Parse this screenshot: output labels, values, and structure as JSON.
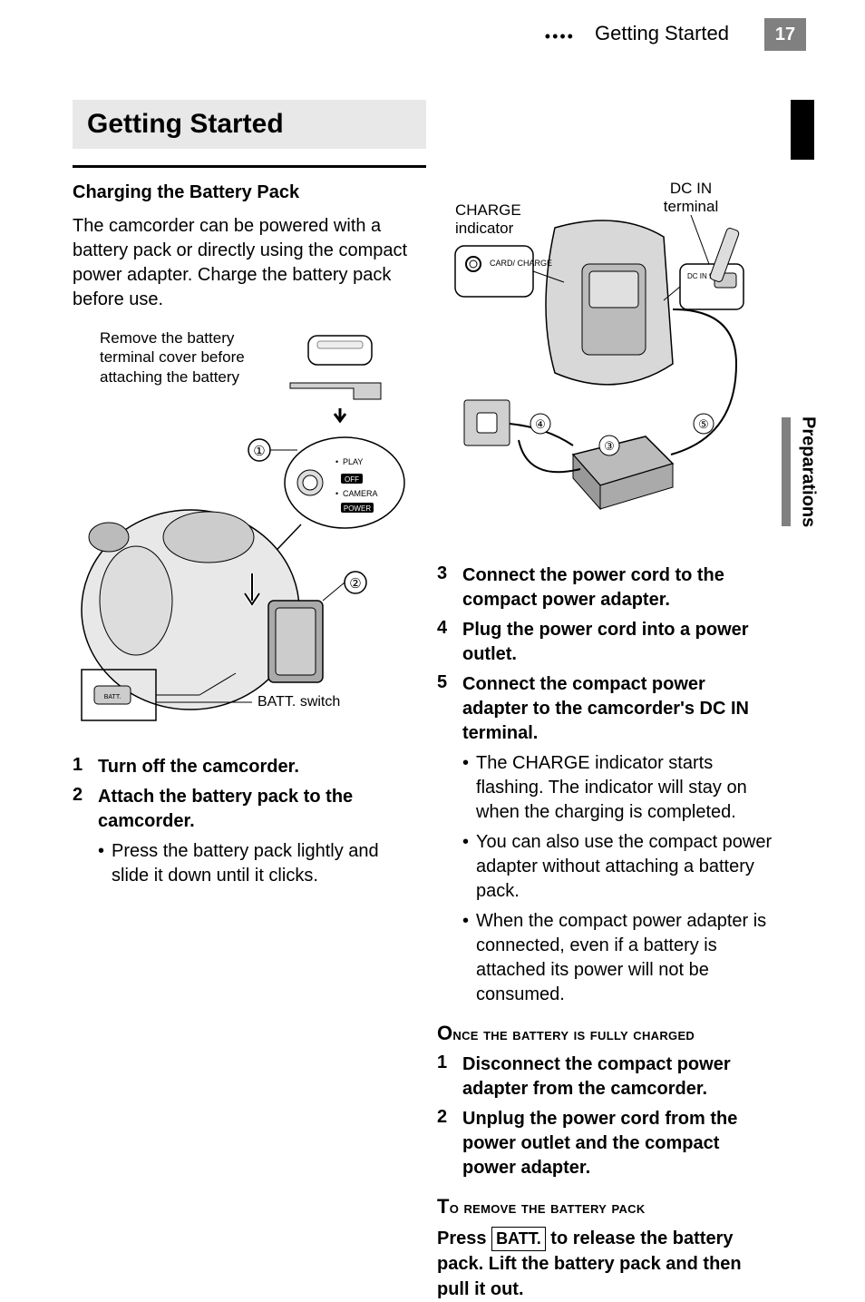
{
  "header": {
    "dots": "••••",
    "title": "Getting Started",
    "page_number": "17"
  },
  "side_tab": "Preparations",
  "section_title": "Getting Started",
  "sub_heading": "Charging the Battery Pack",
  "intro": "The camcorder can be powered with a battery pack or directly using the compact power adapter. Charge the battery pack before use.",
  "fig1": {
    "note": "Remove the battery terminal cover before attaching the battery",
    "callout1": "①",
    "callout2": "②",
    "batt_label": "BATT. switch",
    "dial_play": "PLAY",
    "dial_off": "OFF",
    "dial_camera": "CAMERA",
    "dial_power": "POWER"
  },
  "fig2": {
    "charge_label": "CHARGE indicator",
    "dcin_label": "DC IN terminal",
    "card_charge": "CARD/\nCHARGE",
    "dcin_small": "DC IN\n9.4V",
    "c3": "③",
    "c4": "④",
    "c5": "⑤"
  },
  "left_steps": [
    {
      "num": "1",
      "text": "Turn off the camcorder."
    },
    {
      "num": "2",
      "text": "Attach the battery pack to the camcorder."
    }
  ],
  "left_bullets": [
    "Press the battery pack lightly and slide it down until it clicks."
  ],
  "right_steps": [
    {
      "num": "3",
      "text": "Connect the power cord to the compact power adapter."
    },
    {
      "num": "4",
      "text": "Plug the power cord into a power outlet."
    },
    {
      "num": "5",
      "text": "Connect the compact power adapter to the camcorder's DC IN terminal."
    }
  ],
  "right_bullets": [
    "The CHARGE indicator starts flashing. The indicator will stay on when the charging is completed.",
    "You can also use the compact power adapter without attaching a battery pack.",
    "When the compact power adapter is connected, even if a battery is attached its power will not be consumed."
  ],
  "once_heading": "ONCE THE BATTERY IS FULLY CHARGED",
  "once_steps": [
    {
      "num": "1",
      "text": "Disconnect the compact power adapter from the camcorder."
    },
    {
      "num": "2",
      "text": "Unplug the power cord from the power outlet and the compact power adapter."
    }
  ],
  "remove_heading": "TO REMOVE THE BATTERY PACK",
  "remove_text_pre": "Press ",
  "remove_key": "BATT.",
  "remove_text_post": " to release the battery pack. Lift the battery pack and then pull it out."
}
